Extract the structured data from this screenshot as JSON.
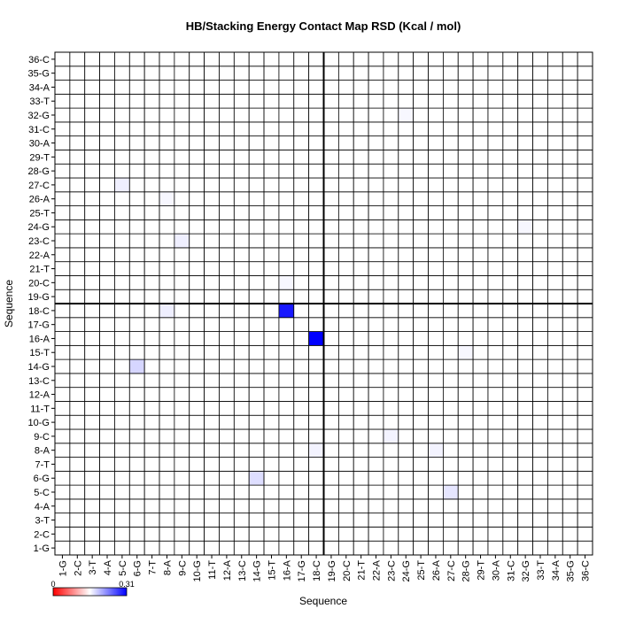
{
  "chart_data": {
    "type": "heatmap",
    "title": "HB/Stacking Energy Contact Map RSD (Kcal / mol)",
    "x_label": "Sequence",
    "y_label": "Sequence",
    "categories": [
      "1-G",
      "2-C",
      "3-T",
      "4-A",
      "5-C",
      "6-G",
      "7-T",
      "8-A",
      "9-C",
      "10-G",
      "11-T",
      "12-A",
      "13-C",
      "14-G",
      "15-T",
      "16-A",
      "17-G",
      "18-C",
      "19-G",
      "20-C",
      "21-T",
      "22-A",
      "23-C",
      "24-G",
      "25-T",
      "26-A",
      "27-C",
      "28-G",
      "29-T",
      "30-A",
      "31-C",
      "32-G",
      "33-T",
      "34-A",
      "35-G",
      "36-C"
    ],
    "values": [
      [
        0,
        0,
        0,
        0,
        0,
        0,
        0,
        0,
        0,
        0,
        0,
        0,
        0,
        0,
        0,
        0,
        0,
        0,
        0,
        0,
        0,
        0,
        0,
        0,
        0,
        0,
        0,
        0,
        0,
        0,
        0,
        0,
        0,
        0,
        0,
        0
      ],
      [
        0,
        0,
        0,
        0,
        0,
        0,
        0,
        0,
        0,
        0,
        0,
        0,
        0,
        0,
        0,
        0,
        0,
        0,
        0,
        0,
        0,
        0,
        0,
        0,
        0,
        0,
        0,
        0,
        0,
        0,
        0,
        0,
        0,
        0,
        0,
        0
      ],
      [
        0,
        0,
        0,
        0,
        0,
        0,
        0,
        0,
        0,
        0,
        0,
        0,
        0,
        0,
        0,
        0,
        0,
        0,
        0,
        0,
        0,
        0,
        0,
        0,
        0,
        0,
        0,
        0,
        0,
        0,
        0,
        0,
        0,
        0,
        0,
        0
      ],
      [
        0,
        0,
        0,
        0,
        0,
        0,
        0,
        0,
        0,
        0,
        0,
        0,
        0,
        0,
        0,
        0,
        0,
        0,
        0,
        0,
        0,
        0,
        0,
        0,
        0,
        0,
        0,
        0,
        0,
        0,
        0,
        0,
        0,
        0,
        0,
        0
      ],
      [
        0,
        0,
        0,
        0,
        0,
        0,
        0,
        0,
        0,
        0,
        0,
        0,
        0,
        0,
        0,
        0,
        0,
        0,
        0,
        0,
        0,
        0,
        0,
        0,
        0,
        0,
        0.03,
        0,
        0,
        0,
        0,
        0,
        0,
        0,
        0,
        0
      ],
      [
        0,
        0,
        0,
        0,
        0,
        0,
        0,
        0,
        0,
        0,
        0,
        0,
        0,
        0.04,
        0,
        0,
        0,
        0,
        0,
        0,
        0,
        0,
        0,
        0,
        0,
        0,
        0,
        0,
        0,
        0,
        0,
        0,
        0,
        0,
        0,
        0
      ],
      [
        0,
        0,
        0,
        0,
        0,
        0,
        0,
        0,
        0,
        0,
        0,
        0,
        0,
        0,
        0,
        0,
        0,
        0,
        0,
        0,
        0,
        0,
        0,
        0,
        0,
        0,
        0,
        0,
        0,
        0,
        0,
        0,
        0,
        0,
        0,
        0
      ],
      [
        0,
        0,
        0,
        0,
        0,
        0,
        0,
        0,
        0,
        0,
        0,
        0,
        0,
        0,
        0,
        0,
        0,
        0.015,
        0,
        0,
        0,
        0,
        0,
        0,
        0,
        0.015,
        0,
        0,
        0,
        0,
        0,
        0,
        0,
        0,
        0,
        0
      ],
      [
        0,
        0,
        0,
        0,
        0,
        0,
        0,
        0,
        0,
        0,
        0,
        0,
        0,
        0,
        0,
        0,
        0,
        0,
        0,
        0,
        0,
        0,
        0.015,
        0,
        0,
        0,
        0,
        0,
        0,
        0,
        0,
        0,
        0,
        0,
        0,
        0
      ],
      [
        0,
        0,
        0,
        0,
        0,
        0,
        0,
        0,
        0,
        0,
        0,
        0,
        0,
        0,
        0,
        0,
        0,
        0,
        0,
        0,
        0,
        0,
        0,
        0,
        0,
        0,
        0,
        0,
        0,
        0,
        0,
        0,
        0,
        0,
        0,
        0
      ],
      [
        0,
        0,
        0,
        0,
        0,
        0,
        0,
        0,
        0,
        0,
        0,
        0,
        0,
        0,
        0,
        0,
        0,
        0,
        0,
        0,
        0,
        0,
        0,
        0,
        0,
        0,
        0,
        0,
        0,
        0,
        0,
        0,
        0,
        0,
        0,
        0
      ],
      [
        0,
        0,
        0,
        0,
        0,
        0,
        0,
        0,
        0,
        0,
        0,
        0,
        0,
        0,
        0,
        0,
        0,
        0,
        0,
        0,
        0,
        0,
        0,
        0,
        0,
        0,
        0,
        0,
        0,
        0,
        0,
        0,
        0,
        0,
        0,
        0
      ],
      [
        0,
        0,
        0,
        0,
        0,
        0,
        0,
        0,
        0,
        0,
        0,
        0,
        0,
        0,
        0,
        0,
        0,
        0,
        0,
        0,
        0,
        0,
        0,
        0,
        0,
        0,
        0,
        0,
        0,
        0,
        0,
        0,
        0,
        0,
        0,
        0
      ],
      [
        0,
        0,
        0,
        0,
        0,
        0.05,
        0,
        0,
        0,
        0,
        0,
        0,
        0,
        0,
        0,
        0,
        0,
        0,
        0,
        0,
        0,
        0,
        0,
        0,
        0,
        0,
        0,
        0,
        0,
        0,
        0,
        0,
        0,
        0,
        0,
        0
      ],
      [
        0,
        0,
        0,
        0,
        0,
        0,
        0,
        0,
        0,
        0,
        0,
        0,
        0,
        0,
        0,
        0,
        0,
        0,
        0,
        0,
        0,
        0,
        0,
        0,
        0,
        0,
        0,
        0.01,
        0,
        0,
        0,
        0,
        0,
        0,
        0,
        0
      ],
      [
        0,
        0,
        0,
        0,
        0,
        0,
        0,
        0,
        0,
        0,
        0,
        0,
        0,
        0,
        0,
        0,
        0,
        0.31,
        0,
        0,
        0,
        0,
        0,
        0,
        0,
        0,
        0,
        0,
        0,
        0,
        0,
        0,
        0,
        0,
        0,
        0
      ],
      [
        0,
        0,
        0,
        0,
        0,
        0,
        0,
        0,
        0,
        0,
        0,
        0,
        0,
        0,
        0,
        0,
        0,
        0,
        0,
        0,
        0,
        0,
        0,
        0,
        0,
        0,
        0,
        0,
        0,
        0,
        0,
        0,
        0,
        0,
        0,
        0
      ],
      [
        0,
        0,
        0,
        0,
        0,
        0,
        0,
        0.02,
        0,
        0,
        0,
        0,
        0,
        0,
        0,
        0.28,
        0,
        0,
        0,
        0,
        0,
        0,
        0,
        0,
        0,
        0,
        0,
        0,
        0,
        0,
        0,
        0,
        0,
        0,
        0,
        0
      ],
      [
        0,
        0,
        0,
        0,
        0,
        0,
        0,
        0,
        0,
        0,
        0,
        0,
        0,
        0,
        0,
        0,
        0,
        0,
        0,
        0,
        0,
        0,
        0,
        0,
        0,
        0,
        0,
        0,
        0,
        0,
        0,
        0,
        0,
        0,
        0,
        0
      ],
      [
        0,
        0,
        0,
        0,
        0,
        0,
        0,
        0,
        0,
        0,
        0,
        0,
        0,
        0,
        0,
        0.01,
        0,
        0,
        0,
        0,
        0,
        0,
        0,
        0,
        0,
        0,
        0,
        0,
        0,
        0,
        0,
        0,
        0,
        0,
        0,
        0
      ],
      [
        0,
        0,
        0,
        0,
        0,
        0,
        0,
        0,
        0,
        0,
        0,
        0,
        0,
        0,
        0,
        0,
        0,
        0,
        0,
        0,
        0,
        0,
        0,
        0,
        0,
        0,
        0,
        0,
        0,
        0,
        0,
        0,
        0,
        0,
        0,
        0
      ],
      [
        0,
        0,
        0,
        0,
        0,
        0,
        0,
        0,
        0,
        0,
        0,
        0,
        0,
        0,
        0,
        0,
        0,
        0,
        0,
        0,
        0,
        0,
        0,
        0,
        0,
        0,
        0,
        0,
        0,
        0,
        0,
        0,
        0,
        0,
        0,
        0
      ],
      [
        0,
        0,
        0,
        0,
        0,
        0,
        0,
        0,
        0.02,
        0,
        0,
        0,
        0,
        0,
        0,
        0,
        0,
        0,
        0,
        0,
        0,
        0,
        0,
        0,
        0,
        0,
        0,
        0,
        0,
        0,
        0,
        0,
        0,
        0,
        0,
        0
      ],
      [
        0,
        0,
        0,
        0,
        0,
        0,
        0,
        0,
        0,
        0,
        0,
        0,
        0,
        0,
        0,
        0,
        0,
        0,
        0,
        0,
        0,
        0,
        0,
        0,
        0,
        0,
        0,
        0,
        0,
        0,
        0,
        0.01,
        0,
        0,
        0,
        0
      ],
      [
        0,
        0,
        0,
        0,
        0,
        0,
        0,
        0,
        0,
        0,
        0,
        0,
        0,
        0,
        0,
        0,
        0,
        0,
        0,
        0,
        0,
        0,
        0,
        0,
        0,
        0,
        0,
        0,
        0,
        0,
        0,
        0,
        0,
        0,
        0,
        0
      ],
      [
        0,
        0,
        0,
        0,
        0,
        0,
        0,
        0.01,
        0,
        0,
        0,
        0,
        0,
        0,
        0,
        0,
        0,
        0,
        0,
        0,
        0,
        0,
        0,
        0,
        0,
        0,
        0,
        0,
        0,
        0,
        0,
        0,
        0,
        0,
        0,
        0
      ],
      [
        0,
        0,
        0,
        0,
        0.02,
        0,
        0,
        0,
        0,
        0,
        0,
        0,
        0,
        0,
        0,
        0,
        0,
        0,
        0,
        0,
        0,
        0,
        0,
        0,
        0,
        0,
        0,
        0,
        0,
        0,
        0,
        0,
        0,
        0,
        0,
        0
      ],
      [
        0,
        0,
        0,
        0,
        0,
        0,
        0,
        0,
        0,
        0,
        0,
        0,
        0,
        0,
        0,
        0,
        0,
        0,
        0,
        0,
        0,
        0,
        0,
        0,
        0,
        0,
        0,
        0,
        0,
        0,
        0,
        0,
        0,
        0,
        0,
        0
      ],
      [
        0,
        0,
        0,
        0,
        0,
        0,
        0,
        0,
        0,
        0,
        0,
        0,
        0,
        0,
        0,
        0,
        0,
        0,
        0,
        0,
        0,
        0,
        0,
        0,
        0,
        0,
        0,
        0,
        0,
        0,
        0,
        0,
        0,
        0,
        0,
        0
      ],
      [
        0,
        0,
        0,
        0,
        0,
        0,
        0,
        0,
        0,
        0,
        0,
        0,
        0,
        0,
        0,
        0,
        0,
        0,
        0,
        0,
        0,
        0,
        0,
        0,
        0,
        0,
        0,
        0,
        0,
        0,
        0,
        0,
        0,
        0,
        0,
        0
      ],
      [
        0,
        0,
        0,
        0,
        0,
        0,
        0,
        0,
        0,
        0,
        0,
        0,
        0,
        0,
        0,
        0,
        0,
        0,
        0,
        0,
        0,
        0,
        0,
        0,
        0,
        0,
        0,
        0,
        0,
        0,
        0,
        0,
        0,
        0,
        0,
        0
      ],
      [
        0,
        0,
        0,
        0,
        0,
        0,
        0,
        0,
        0,
        0,
        0,
        0,
        0,
        0,
        0,
        0,
        0,
        0,
        0,
        0,
        0,
        0,
        0,
        0.01,
        0,
        0,
        0,
        0,
        0,
        0,
        0,
        0,
        0,
        0,
        0,
        0
      ],
      [
        0,
        0,
        0,
        0,
        0,
        0,
        0,
        0,
        0,
        0,
        0,
        0,
        0,
        0,
        0,
        0,
        0,
        0,
        0,
        0,
        0,
        0,
        0,
        0,
        0,
        0,
        0,
        0,
        0,
        0,
        0,
        0,
        0,
        0,
        0,
        0
      ],
      [
        0,
        0,
        0,
        0,
        0,
        0,
        0,
        0,
        0,
        0,
        0,
        0,
        0,
        0,
        0,
        0,
        0,
        0,
        0,
        0,
        0,
        0,
        0,
        0,
        0,
        0,
        0,
        0,
        0,
        0,
        0,
        0,
        0,
        0,
        0,
        0
      ],
      [
        0,
        0,
        0,
        0,
        0,
        0,
        0,
        0,
        0,
        0,
        0,
        0,
        0,
        0,
        0,
        0,
        0,
        0,
        0,
        0,
        0,
        0,
        0,
        0,
        0,
        0,
        0,
        0,
        0,
        0,
        0,
        0,
        0,
        0,
        0,
        0
      ],
      [
        0,
        0,
        0,
        0,
        0,
        0,
        0,
        0,
        0,
        0,
        0,
        0,
        0,
        0,
        0,
        0,
        0,
        0,
        0,
        0,
        0,
        0,
        0,
        0,
        0,
        0,
        0,
        0,
        0,
        0,
        0,
        0,
        0,
        0,
        0,
        0
      ]
    ],
    "colorbar_lim": [
      0,
      0.31
    ],
    "colorbar_ticks": [
      0,
      0.31
    ],
    "colors": {
      "low": "#ff0000",
      "mid": "#ffffff",
      "high": "#0000ff"
    }
  }
}
